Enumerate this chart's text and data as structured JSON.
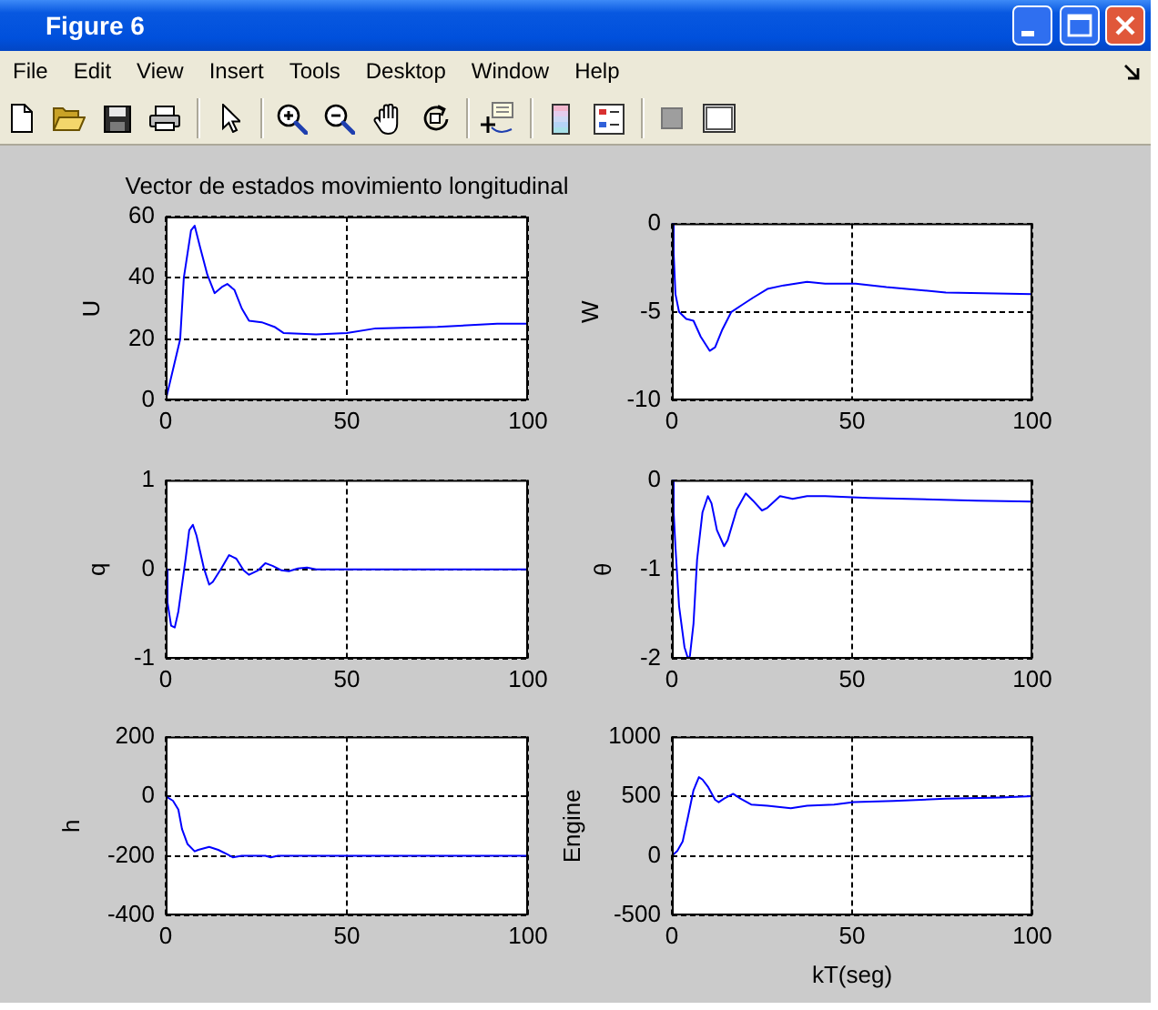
{
  "chart_data": [
    {
      "type": "other",
      "title": "Figure 6",
      "annotations": [
        "File",
        "Edit",
        "View",
        "Insert",
        "Tools",
        "Desktop",
        "Window",
        "Help"
      ]
    },
    {
      "type": "line",
      "title": "Vector de estados movimiento longitudinal",
      "ylabel": "U",
      "x": [
        0,
        4,
        5,
        7,
        8,
        9.5,
        11.5,
        13.5,
        15.5,
        17,
        19,
        21,
        23,
        26.5,
        30,
        32.5,
        41.5,
        50,
        58,
        75,
        91.5,
        100
      ],
      "values": [
        0,
        20,
        40,
        55.5,
        57,
        50,
        41,
        35,
        37,
        38,
        36,
        30,
        26,
        25.5,
        24,
        22,
        21.5,
        22,
        23.5,
        24,
        25,
        25
      ],
      "color": "#0000ff",
      "xlim": [
        0,
        100
      ],
      "xticks": [
        0,
        50,
        100
      ],
      "ylim": [
        0,
        60
      ],
      "yticks": [
        0,
        20,
        40,
        60
      ],
      "grid": true
    },
    {
      "type": "line",
      "ylabel": "W",
      "x": [
        0,
        0.5,
        1,
        2,
        4,
        6,
        8,
        10.5,
        12,
        14,
        16.5,
        19.5,
        22.5,
        26.5,
        31,
        37.5,
        42.5,
        51,
        59.5,
        76,
        100
      ],
      "values": [
        0,
        -1.7,
        -4,
        -5,
        -5.4,
        -5.5,
        -6.4,
        -7.2,
        -7,
        -6,
        -5,
        -4.6,
        -4.2,
        -3.7,
        -3.5,
        -3.3,
        -3.4,
        -3.4,
        -3.6,
        -3.9,
        -4
      ],
      "color": "#0000ff",
      "xlim": [
        0,
        100
      ],
      "xticks": [
        0,
        50,
        100
      ],
      "ylim": [
        -10,
        0
      ],
      "yticks": [
        -10,
        -5,
        0
      ],
      "grid": true
    },
    {
      "type": "line",
      "ylabel": "q",
      "x": [
        0,
        0.5,
        1.5,
        2.5,
        3.5,
        5.5,
        6.5,
        7.5,
        8.5,
        10.5,
        12,
        13,
        15.5,
        17.5,
        19.5,
        21.5,
        23,
        25.5,
        27.5,
        29.5,
        32,
        34,
        36.5,
        39,
        41.5,
        100
      ],
      "values": [
        0,
        -0.37,
        -0.63,
        -0.65,
        -0.47,
        0.12,
        0.44,
        0.5,
        0.38,
        0.02,
        -0.17,
        -0.14,
        0.02,
        0.16,
        0.12,
        -0.01,
        -0.06,
        -0.01,
        0.07,
        0.04,
        -0.01,
        -0.02,
        0.01,
        0.02,
        0,
        0
      ],
      "color": "#0000ff",
      "xlim": [
        0,
        100
      ],
      "xticks": [
        0,
        50,
        100
      ],
      "ylim": [
        -1,
        1
      ],
      "yticks": [
        -1,
        0,
        1
      ],
      "grid": true
    },
    {
      "type": "line",
      "ylabel": "θ",
      "x": [
        0,
        0.5,
        1,
        2,
        3.5,
        4.5,
        5,
        6,
        7,
        8.5,
        10,
        11,
        12.5,
        14.5,
        15.5,
        18,
        20.5,
        22.5,
        25,
        26.5,
        30,
        33.5,
        37.5,
        42.5,
        54.5,
        84.5,
        100
      ],
      "values": [
        0,
        -0.36,
        -0.75,
        -1.41,
        -1.87,
        -2,
        -1.97,
        -1.61,
        -0.89,
        -0.36,
        -0.18,
        -0.26,
        -0.56,
        -0.74,
        -0.67,
        -0.33,
        -0.15,
        -0.23,
        -0.34,
        -0.31,
        -0.18,
        -0.21,
        -0.18,
        -0.18,
        -0.2,
        -0.23,
        -0.24
      ],
      "color": "#0000ff",
      "xlim": [
        0,
        100
      ],
      "xticks": [
        0,
        50,
        100
      ],
      "ylim": [
        -2,
        0
      ],
      "yticks": [
        -2,
        -1,
        0
      ],
      "grid": true
    },
    {
      "type": "line",
      "ylabel": "h",
      "x": [
        0,
        2,
        3.5,
        4.5,
        6,
        8,
        9,
        12,
        14.5,
        17,
        18.5,
        21,
        27.5,
        29,
        31,
        100
      ],
      "values": [
        0,
        -15,
        -45,
        -110,
        -160,
        -185,
        -180,
        -170,
        -180,
        -195,
        -205,
        -200,
        -200,
        -205,
        -200,
        -200
      ],
      "color": "#0000ff",
      "xlim": [
        0,
        100
      ],
      "xticks": [
        0,
        50,
        100
      ],
      "ylim": [
        -400,
        200
      ],
      "yticks": [
        -400,
        -200,
        0,
        200
      ],
      "grid": true
    },
    {
      "type": "line",
      "ylabel": "Engine",
      "xlabel": "kT(seg)",
      "x": [
        0,
        1.5,
        3,
        4.5,
        6,
        7.5,
        8.5,
        10,
        12,
        13,
        14.5,
        17,
        19,
        22,
        26.5,
        33,
        37.5,
        45,
        50.5,
        61.5,
        76,
        91,
        100
      ],
      "values": [
        0,
        40,
        120,
        330,
        550,
        660,
        640,
        580,
        470,
        450,
        480,
        520,
        480,
        430,
        420,
        400,
        420,
        430,
        450,
        460,
        480,
        490,
        500
      ],
      "color": "#0000ff",
      "xlim": [
        0,
        100
      ],
      "xticks": [
        0,
        50,
        100
      ],
      "ylim": [
        -500,
        1000
      ],
      "yticks": [
        -500,
        0,
        500,
        1000
      ],
      "grid": true
    }
  ]
}
